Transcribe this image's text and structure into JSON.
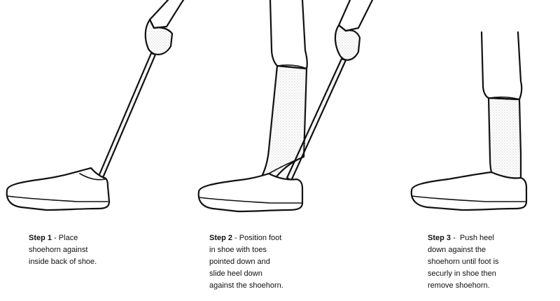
{
  "steps": [
    {
      "label": "Step 1",
      "separator": " - ",
      "lines": [
        "Place",
        "shoehorn against",
        "inside back of shoe."
      ]
    },
    {
      "label": "Step 2",
      "separator": " - ",
      "lines": [
        "Position foot",
        "in shoe with toes",
        "pointed down and",
        "slide heel down",
        "against the shoehorn."
      ]
    },
    {
      "label": "Step 3",
      "separator": " -  ",
      "lines": [
        "Push heel",
        "down against the",
        "shoehorn until foot is",
        "securly in shoe then",
        "remove shoehorn."
      ]
    }
  ],
  "colors": {
    "line": "#111111",
    "background": "#ffffff",
    "shading": "#9a9a9a"
  }
}
